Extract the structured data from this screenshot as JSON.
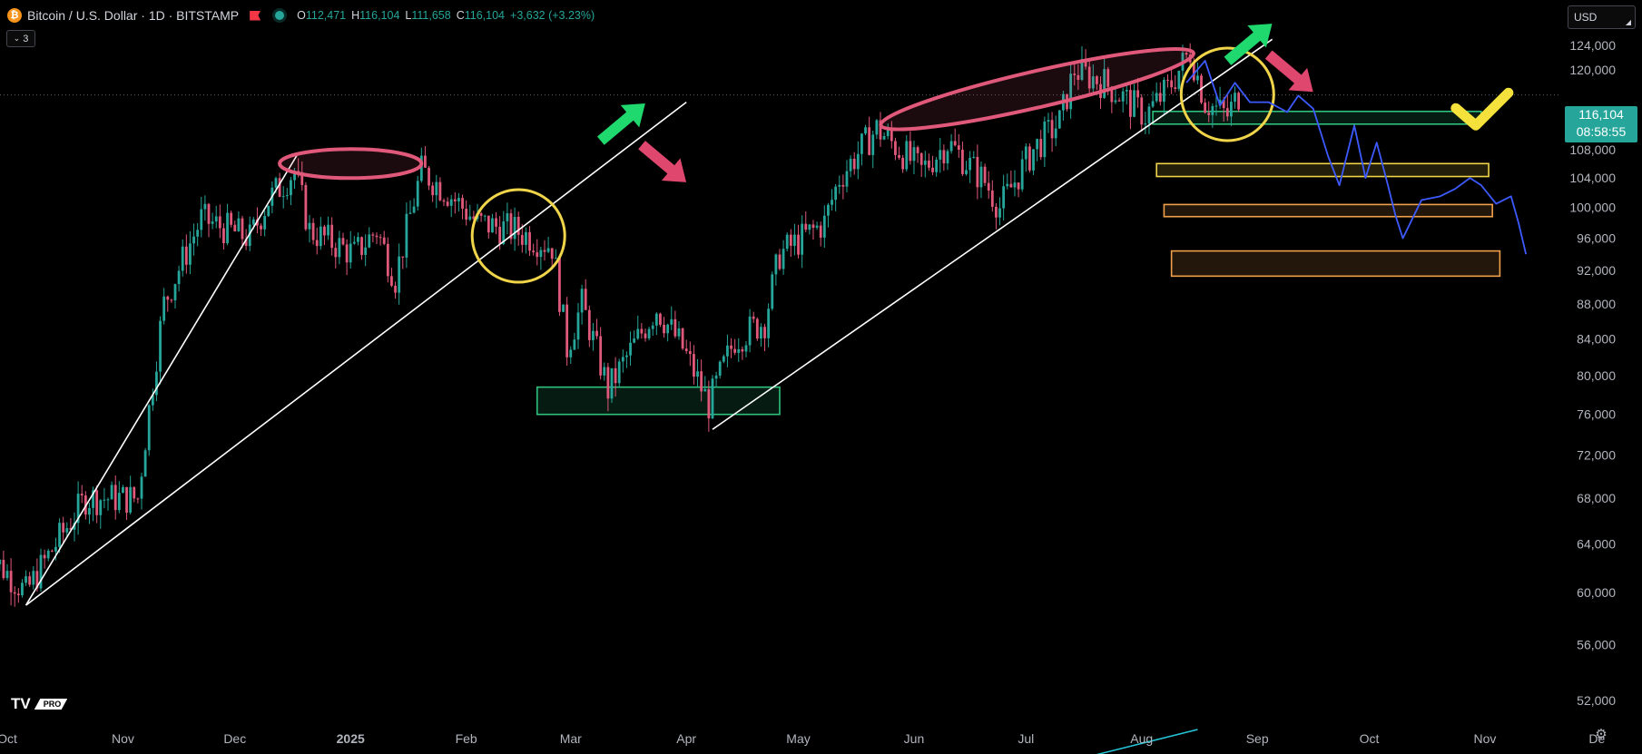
{
  "header": {
    "symbol": "Bitcoin / U.S. Dollar · 1D · BITSTAMP",
    "coin_glyph": "₿",
    "ohlc": [
      {
        "k": "O",
        "v": "112,471"
      },
      {
        "k": "H",
        "v": "116,104"
      },
      {
        "k": "L",
        "v": "111,658"
      },
      {
        "k": "C",
        "v": "116,104"
      }
    ],
    "change": "+3,632 (+3.23%)"
  },
  "indicator_count": "3",
  "currency": "USD",
  "price_tag": {
    "price": "116,104",
    "countdown": "08:58:55"
  },
  "logo": {
    "mark": "TV",
    "badge": "PRO"
  },
  "colors": {
    "up": "#26a69a",
    "down": "#e0587a",
    "projection": "#3d5afe",
    "trendline": "#ffffff",
    "green_zone": "#2ec27e",
    "yellow_zone": "#f0d54a",
    "orange_zone": "#f0a04a"
  },
  "chart_data": {
    "type": "line",
    "y_scale": "log",
    "ylim": [
      50000,
      127000
    ],
    "y_ticks": [
      124000,
      120000,
      116000,
      112000,
      108000,
      104000,
      100000,
      96000,
      92000,
      88000,
      84000,
      80000,
      76000,
      72000,
      68000,
      64000,
      60000,
      56000,
      52000
    ],
    "y_tick_labels": [
      "124,000",
      "120,000",
      "",
      "112,000",
      "108,000",
      "104,000",
      "100,000",
      "96,000",
      "92,000",
      "88,000",
      "84,000",
      "80,000",
      "76,000",
      "72,000",
      "68,000",
      "64,000",
      "60,000",
      "56,000",
      "52,000"
    ],
    "x_ticks": [
      "Oct",
      "Nov",
      "Dec",
      "2025",
      "Feb",
      "Mar",
      "Apr",
      "May",
      "Jun",
      "Jul",
      "Aug",
      "Sep",
      "Oct",
      "Nov",
      "De"
    ],
    "x_tick_dates": [
      "2024-10-01",
      "2024-11-01",
      "2024-12-01",
      "2025-01-01",
      "2025-02-01",
      "2025-03-01",
      "2025-04-01",
      "2025-05-01",
      "2025-06-01",
      "2025-07-01",
      "2025-08-01",
      "2025-09-01",
      "2025-10-01",
      "2025-11-01",
      "2025-12-01"
    ],
    "current_price": 116104,
    "price_path": [
      [
        "2024-09-25",
        63500
      ],
      [
        "2024-10-06",
        60000
      ],
      [
        "2024-10-15",
        64500
      ],
      [
        "2024-10-22",
        68000
      ],
      [
        "2024-11-05",
        68000
      ],
      [
        "2024-11-08",
        76500
      ],
      [
        "2024-11-12",
        88000
      ],
      [
        "2024-11-22",
        98500
      ],
      [
        "2024-12-05",
        96000
      ],
      [
        "2024-12-10",
        101000
      ],
      [
        "2024-12-17",
        105000
      ],
      [
        "2024-12-21",
        97000
      ],
      [
        "2025-01-02",
        94000
      ],
      [
        "2025-01-08",
        97000
      ],
      [
        "2025-01-13",
        91000
      ],
      [
        "2025-01-20",
        105000
      ],
      [
        "2025-01-27",
        102000
      ],
      [
        "2025-02-04",
        98000
      ],
      [
        "2025-02-14",
        97000
      ],
      [
        "2025-02-24",
        95000
      ],
      [
        "2025-02-28",
        83000
      ],
      [
        "2025-03-04",
        88000
      ],
      [
        "2025-03-11",
        78500
      ],
      [
        "2025-03-24",
        87500
      ],
      [
        "2025-03-31",
        83000
      ],
      [
        "2025-04-07",
        77000
      ],
      [
        "2025-04-14",
        84000
      ],
      [
        "2025-04-22",
        86000
      ],
      [
        "2025-04-26",
        94000
      ],
      [
        "2025-05-08",
        98000
      ],
      [
        "2025-05-12",
        104000
      ],
      [
        "2025-05-22",
        111000
      ],
      [
        "2025-06-03",
        105000
      ],
      [
        "2025-06-10",
        109000
      ],
      [
        "2025-06-20",
        103500
      ],
      [
        "2025-06-24",
        100000
      ],
      [
        "2025-07-03",
        108000
      ],
      [
        "2025-07-10",
        112000
      ],
      [
        "2025-07-14",
        120000
      ],
      [
        "2025-07-22",
        118000
      ],
      [
        "2025-08-02",
        113000
      ],
      [
        "2025-08-08",
        117000
      ],
      [
        "2025-08-14",
        123000
      ],
      [
        "2025-08-18",
        115000
      ],
      [
        "2025-08-24",
        113000
      ],
      [
        "2025-08-27",
        116104
      ]
    ],
    "projection": [
      [
        "2025-08-13",
        118000
      ],
      [
        "2025-08-18",
        121500
      ],
      [
        "2025-08-22",
        114500
      ],
      [
        "2025-08-26",
        118000
      ],
      [
        "2025-08-30",
        115000
      ],
      [
        "2025-09-04",
        115000
      ],
      [
        "2025-09-09",
        113500
      ],
      [
        "2025-09-12",
        116000
      ],
      [
        "2025-09-16",
        114000
      ],
      [
        "2025-09-20",
        107000
      ],
      [
        "2025-09-23",
        103000
      ],
      [
        "2025-09-27",
        111500
      ],
      [
        "2025-09-30",
        104000
      ],
      [
        "2025-10-03",
        109000
      ],
      [
        "2025-10-06",
        103000
      ],
      [
        "2025-10-08",
        99000
      ],
      [
        "2025-10-10",
        96000
      ],
      [
        "2025-10-15",
        101000
      ],
      [
        "2025-10-20",
        101500
      ],
      [
        "2025-10-24",
        102500
      ],
      [
        "2025-10-28",
        104000
      ],
      [
        "2025-10-31",
        103000
      ],
      [
        "2025-11-04",
        100500
      ],
      [
        "2025-11-08",
        101500
      ],
      [
        "2025-11-10",
        98000
      ],
      [
        "2025-11-12",
        94000
      ]
    ],
    "trendlines": [
      {
        "from": [
          "2024-10-06",
          59000
        ],
        "to": [
          "2024-12-18",
          107500
        ]
      },
      {
        "from": [
          "2024-10-06",
          59000
        ],
        "to": [
          "2025-04-01",
          115000
        ]
      },
      {
        "from": [
          "2025-04-08",
          74500
        ],
        "to": [
          "2025-09-05",
          125000
        ]
      }
    ],
    "zones": [
      {
        "name": "support-apr",
        "color": "green",
        "from": "2025-02-20",
        "to": "2025-04-26",
        "low": 76000,
        "high": 78800
      },
      {
        "name": "support-aug",
        "color": "green",
        "from": "2025-08-04",
        "to": "2025-10-31",
        "low": 111700,
        "high": 113600
      },
      {
        "name": "target-1",
        "color": "yellow",
        "from": "2025-08-05",
        "to": "2025-11-02",
        "low": 104200,
        "high": 106000
      },
      {
        "name": "target-2",
        "color": "orange",
        "from": "2025-08-07",
        "to": "2025-11-03",
        "low": 98800,
        "high": 100400
      },
      {
        "name": "target-3",
        "color": "orange",
        "from": "2025-08-09",
        "to": "2025-11-05",
        "low": 91300,
        "high": 94400
      }
    ],
    "ellipses": [
      {
        "name": "top-dec",
        "color": "pink",
        "from": "2024-12-13",
        "to": "2025-01-20",
        "center": 106000
      },
      {
        "name": "top-jul",
        "color": "pink",
        "from": "2025-05-22",
        "to": "2025-08-16",
        "center": 117000
      }
    ],
    "circles": [
      {
        "name": "break-feb",
        "date": "2025-02-15",
        "price": 96300
      },
      {
        "name": "retest-aug",
        "date": "2025-08-24",
        "price": 116200
      }
    ],
    "arrows": [
      {
        "name": "arrow-up-1",
        "color": "green",
        "direction": "up",
        "date": "2025-03-15",
        "price": 112000
      },
      {
        "name": "arrow-down-1",
        "color": "pink",
        "direction": "down",
        "date": "2025-03-26",
        "price": 106000
      },
      {
        "name": "arrow-up-2",
        "color": "green",
        "direction": "up",
        "date": "2025-08-30",
        "price": 124500
      },
      {
        "name": "arrow-down-2",
        "color": "pink",
        "direction": "down",
        "date": "2025-09-10",
        "price": 119500
      }
    ],
    "checkmark": {
      "color": "yellow",
      "date": "2025-10-31",
      "price": 114500
    },
    "volume_line": [
      [
        "2025-07-08",
        49800
      ],
      [
        "2025-08-16",
        51500
      ]
    ]
  }
}
